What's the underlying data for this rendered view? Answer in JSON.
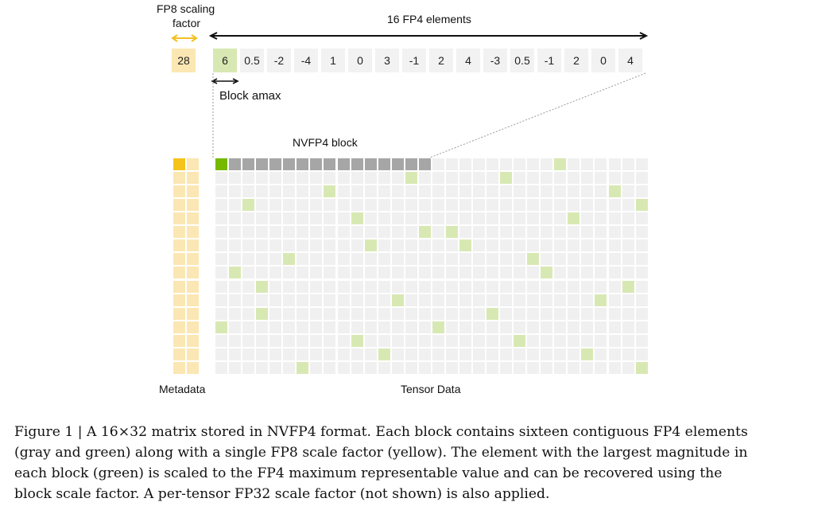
{
  "labels": {
    "fp8_scaling": "FP8 scaling",
    "fp8_factor": "factor",
    "fp4_elements": "16 FP4 elements",
    "block_amax": "Block amax",
    "nvfp4_block": "NVFP4 block",
    "metadata": "Metadata",
    "tensor_data": "Tensor Data"
  },
  "scale_value": "28",
  "block_values": [
    "6",
    "0.5",
    "-2",
    "-4",
    "1",
    "0",
    "3",
    "-1",
    "2",
    "4",
    "-3",
    "0.5",
    "-1",
    "2",
    "0",
    "4"
  ],
  "matrix": {
    "rows": 16,
    "cols": 32,
    "block_size": 16,
    "highlight_cells": [
      [
        0,
        0
      ],
      [
        0,
        25
      ],
      [
        1,
        14
      ],
      [
        1,
        21
      ],
      [
        2,
        8
      ],
      [
        2,
        29
      ],
      [
        3,
        2
      ],
      [
        3,
        31
      ],
      [
        4,
        10
      ],
      [
        4,
        26
      ],
      [
        5,
        15
      ],
      [
        5,
        17
      ],
      [
        6,
        11
      ],
      [
        6,
        18
      ],
      [
        7,
        5
      ],
      [
        7,
        23
      ],
      [
        8,
        1
      ],
      [
        8,
        24
      ],
      [
        9,
        3
      ],
      [
        9,
        30
      ],
      [
        10,
        13
      ],
      [
        10,
        28
      ],
      [
        11,
        3
      ],
      [
        11,
        20
      ],
      [
        12,
        0
      ],
      [
        12,
        16
      ],
      [
        13,
        10
      ],
      [
        13,
        22
      ],
      [
        14,
        12
      ],
      [
        14,
        27
      ],
      [
        15,
        6
      ],
      [
        15,
        31
      ]
    ]
  },
  "colors": {
    "scale_yellow": "#fbe7b3",
    "scale_yellow_active": "#f5c31a",
    "amax_green": "#d8e8b3",
    "amax_green_active": "#76b900",
    "block_gray": "#a6a6a6",
    "cell_light": "#f0f0f0",
    "value_cell": "#f2f2f2"
  },
  "caption": {
    "lines": [
      "Figure 1 | A 16×32 matrix stored in NVFP4 format. Each block contains sixteen contiguous FP4 elements",
      "(gray and green) along with a single FP8 scale factor (yellow). The element with the largest magnitude in",
      "each block (green) is scaled to the FP4 maximum representable value and can be recovered using the",
      "block scale factor. A per-tensor FP32 scale factor (not shown) is also applied."
    ]
  }
}
